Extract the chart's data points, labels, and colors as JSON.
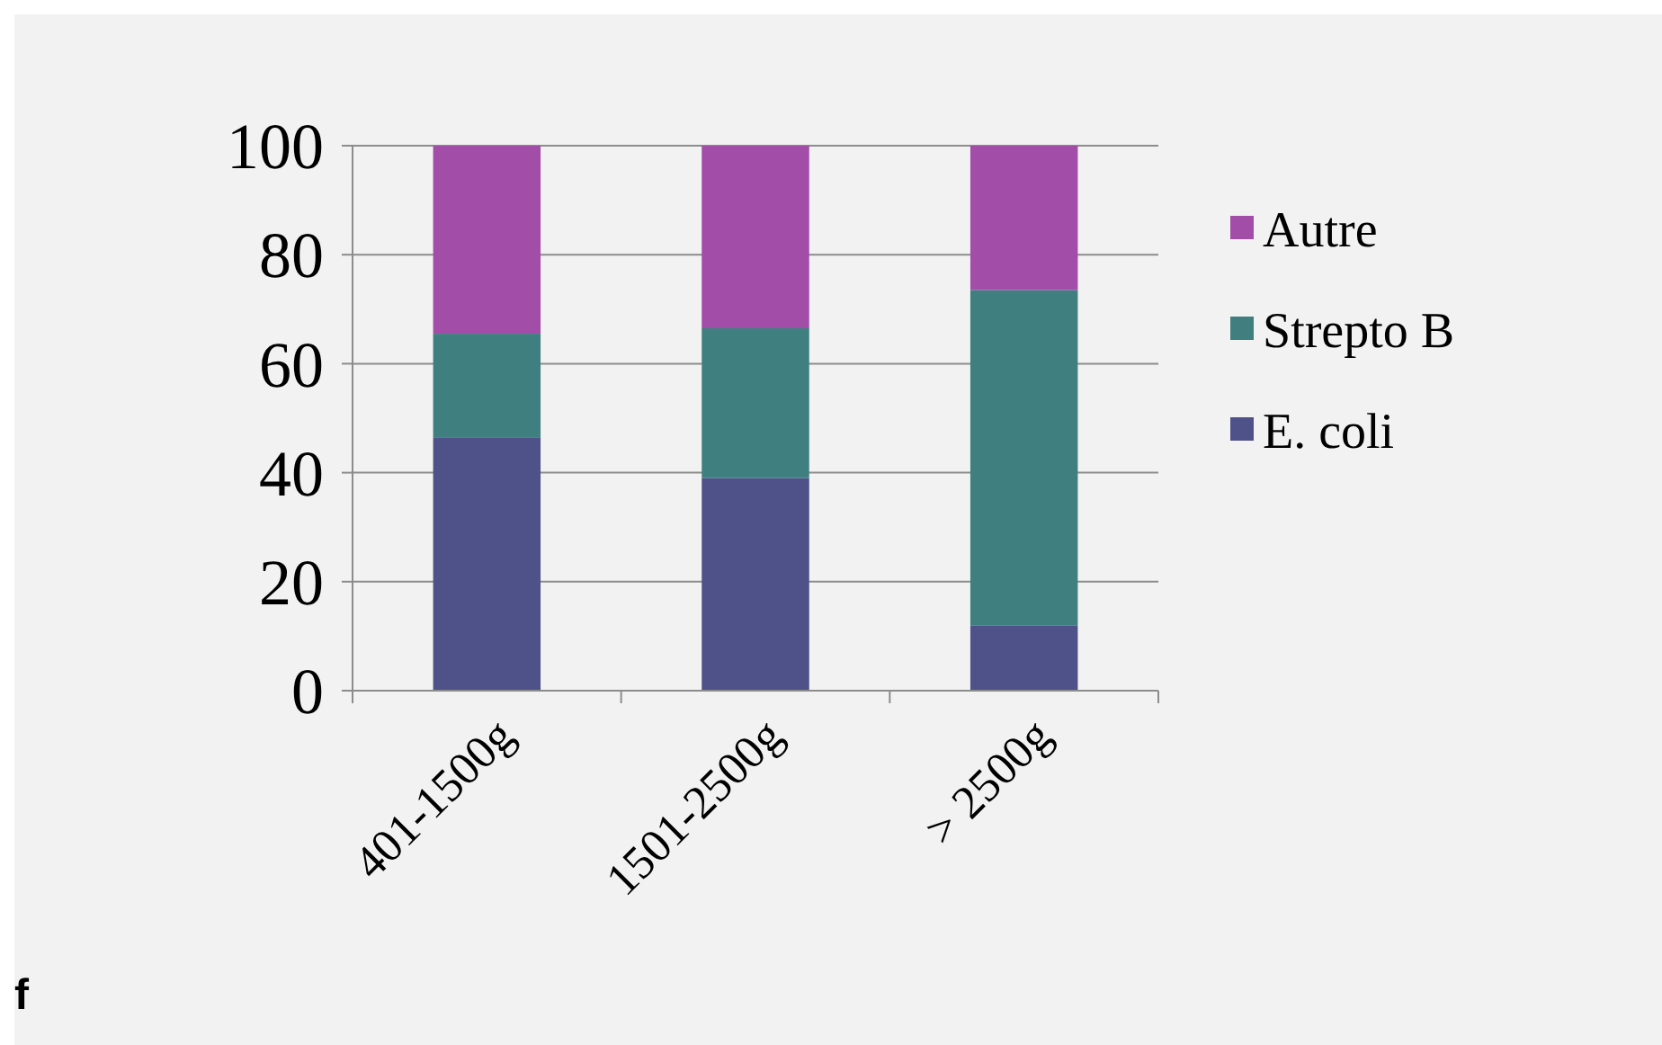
{
  "chart_data": {
    "type": "bar",
    "stacked": true,
    "categories": [
      "401-1500g",
      "1501-2500g",
      "> 2500g"
    ],
    "series": [
      {
        "name": "E. coli",
        "color": "#4f5189",
        "values": [
          46.5,
          39,
          12
        ]
      },
      {
        "name": "Strepto B",
        "color": "#3f7f80",
        "values": [
          19,
          27.5,
          61.5
        ]
      },
      {
        "name": "Autre",
        "color": "#a24da8",
        "values": [
          34.5,
          33.5,
          26.5
        ]
      }
    ],
    "ylim": [
      0,
      100
    ],
    "yticks": [
      0,
      20,
      40,
      60,
      80,
      100
    ],
    "grid": "y",
    "legend": "right",
    "annotations": [
      "f"
    ]
  }
}
